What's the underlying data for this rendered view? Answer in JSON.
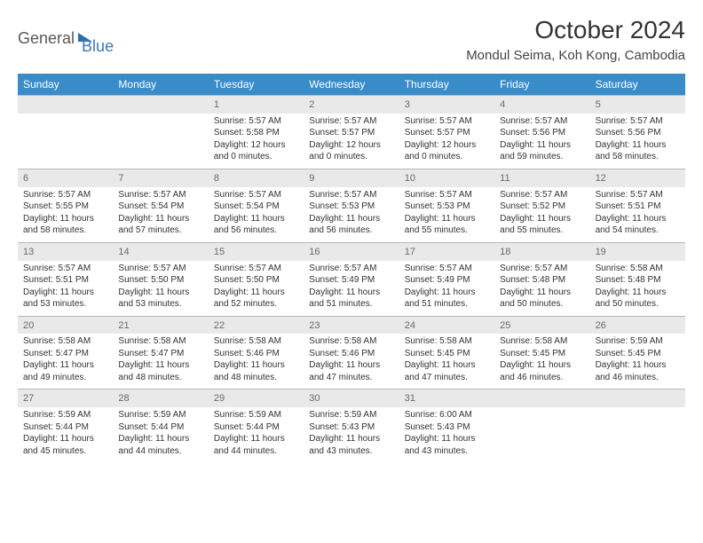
{
  "colors": {
    "header_bg": "#3a8cc9",
    "header_text": "#ffffff",
    "daynum_bg": "#e9e9e9",
    "daynum_text": "#6a6a6a",
    "border": "#b8b8b8",
    "body_text": "#333333",
    "logo_gray": "#5a5a5a",
    "logo_blue": "#3a7ab8"
  },
  "logo": {
    "part1": "General",
    "part2": "Blue"
  },
  "title": "October 2024",
  "location": "Mondul Seima, Koh Kong, Cambodia",
  "weekdays": [
    "Sunday",
    "Monday",
    "Tuesday",
    "Wednesday",
    "Thursday",
    "Friday",
    "Saturday"
  ],
  "weeks": [
    [
      null,
      null,
      {
        "num": "1",
        "sunrise": "Sunrise: 5:57 AM",
        "sunset": "Sunset: 5:58 PM",
        "daylight": "Daylight: 12 hours and 0 minutes."
      },
      {
        "num": "2",
        "sunrise": "Sunrise: 5:57 AM",
        "sunset": "Sunset: 5:57 PM",
        "daylight": "Daylight: 12 hours and 0 minutes."
      },
      {
        "num": "3",
        "sunrise": "Sunrise: 5:57 AM",
        "sunset": "Sunset: 5:57 PM",
        "daylight": "Daylight: 12 hours and 0 minutes."
      },
      {
        "num": "4",
        "sunrise": "Sunrise: 5:57 AM",
        "sunset": "Sunset: 5:56 PM",
        "daylight": "Daylight: 11 hours and 59 minutes."
      },
      {
        "num": "5",
        "sunrise": "Sunrise: 5:57 AM",
        "sunset": "Sunset: 5:56 PM",
        "daylight": "Daylight: 11 hours and 58 minutes."
      }
    ],
    [
      {
        "num": "6",
        "sunrise": "Sunrise: 5:57 AM",
        "sunset": "Sunset: 5:55 PM",
        "daylight": "Daylight: 11 hours and 58 minutes."
      },
      {
        "num": "7",
        "sunrise": "Sunrise: 5:57 AM",
        "sunset": "Sunset: 5:54 PM",
        "daylight": "Daylight: 11 hours and 57 minutes."
      },
      {
        "num": "8",
        "sunrise": "Sunrise: 5:57 AM",
        "sunset": "Sunset: 5:54 PM",
        "daylight": "Daylight: 11 hours and 56 minutes."
      },
      {
        "num": "9",
        "sunrise": "Sunrise: 5:57 AM",
        "sunset": "Sunset: 5:53 PM",
        "daylight": "Daylight: 11 hours and 56 minutes."
      },
      {
        "num": "10",
        "sunrise": "Sunrise: 5:57 AM",
        "sunset": "Sunset: 5:53 PM",
        "daylight": "Daylight: 11 hours and 55 minutes."
      },
      {
        "num": "11",
        "sunrise": "Sunrise: 5:57 AM",
        "sunset": "Sunset: 5:52 PM",
        "daylight": "Daylight: 11 hours and 55 minutes."
      },
      {
        "num": "12",
        "sunrise": "Sunrise: 5:57 AM",
        "sunset": "Sunset: 5:51 PM",
        "daylight": "Daylight: 11 hours and 54 minutes."
      }
    ],
    [
      {
        "num": "13",
        "sunrise": "Sunrise: 5:57 AM",
        "sunset": "Sunset: 5:51 PM",
        "daylight": "Daylight: 11 hours and 53 minutes."
      },
      {
        "num": "14",
        "sunrise": "Sunrise: 5:57 AM",
        "sunset": "Sunset: 5:50 PM",
        "daylight": "Daylight: 11 hours and 53 minutes."
      },
      {
        "num": "15",
        "sunrise": "Sunrise: 5:57 AM",
        "sunset": "Sunset: 5:50 PM",
        "daylight": "Daylight: 11 hours and 52 minutes."
      },
      {
        "num": "16",
        "sunrise": "Sunrise: 5:57 AM",
        "sunset": "Sunset: 5:49 PM",
        "daylight": "Daylight: 11 hours and 51 minutes."
      },
      {
        "num": "17",
        "sunrise": "Sunrise: 5:57 AM",
        "sunset": "Sunset: 5:49 PM",
        "daylight": "Daylight: 11 hours and 51 minutes."
      },
      {
        "num": "18",
        "sunrise": "Sunrise: 5:57 AM",
        "sunset": "Sunset: 5:48 PM",
        "daylight": "Daylight: 11 hours and 50 minutes."
      },
      {
        "num": "19",
        "sunrise": "Sunrise: 5:58 AM",
        "sunset": "Sunset: 5:48 PM",
        "daylight": "Daylight: 11 hours and 50 minutes."
      }
    ],
    [
      {
        "num": "20",
        "sunrise": "Sunrise: 5:58 AM",
        "sunset": "Sunset: 5:47 PM",
        "daylight": "Daylight: 11 hours and 49 minutes."
      },
      {
        "num": "21",
        "sunrise": "Sunrise: 5:58 AM",
        "sunset": "Sunset: 5:47 PM",
        "daylight": "Daylight: 11 hours and 48 minutes."
      },
      {
        "num": "22",
        "sunrise": "Sunrise: 5:58 AM",
        "sunset": "Sunset: 5:46 PM",
        "daylight": "Daylight: 11 hours and 48 minutes."
      },
      {
        "num": "23",
        "sunrise": "Sunrise: 5:58 AM",
        "sunset": "Sunset: 5:46 PM",
        "daylight": "Daylight: 11 hours and 47 minutes."
      },
      {
        "num": "24",
        "sunrise": "Sunrise: 5:58 AM",
        "sunset": "Sunset: 5:45 PM",
        "daylight": "Daylight: 11 hours and 47 minutes."
      },
      {
        "num": "25",
        "sunrise": "Sunrise: 5:58 AM",
        "sunset": "Sunset: 5:45 PM",
        "daylight": "Daylight: 11 hours and 46 minutes."
      },
      {
        "num": "26",
        "sunrise": "Sunrise: 5:59 AM",
        "sunset": "Sunset: 5:45 PM",
        "daylight": "Daylight: 11 hours and 46 minutes."
      }
    ],
    [
      {
        "num": "27",
        "sunrise": "Sunrise: 5:59 AM",
        "sunset": "Sunset: 5:44 PM",
        "daylight": "Daylight: 11 hours and 45 minutes."
      },
      {
        "num": "28",
        "sunrise": "Sunrise: 5:59 AM",
        "sunset": "Sunset: 5:44 PM",
        "daylight": "Daylight: 11 hours and 44 minutes."
      },
      {
        "num": "29",
        "sunrise": "Sunrise: 5:59 AM",
        "sunset": "Sunset: 5:44 PM",
        "daylight": "Daylight: 11 hours and 44 minutes."
      },
      {
        "num": "30",
        "sunrise": "Sunrise: 5:59 AM",
        "sunset": "Sunset: 5:43 PM",
        "daylight": "Daylight: 11 hours and 43 minutes."
      },
      {
        "num": "31",
        "sunrise": "Sunrise: 6:00 AM",
        "sunset": "Sunset: 5:43 PM",
        "daylight": "Daylight: 11 hours and 43 minutes."
      },
      null,
      null
    ]
  ]
}
